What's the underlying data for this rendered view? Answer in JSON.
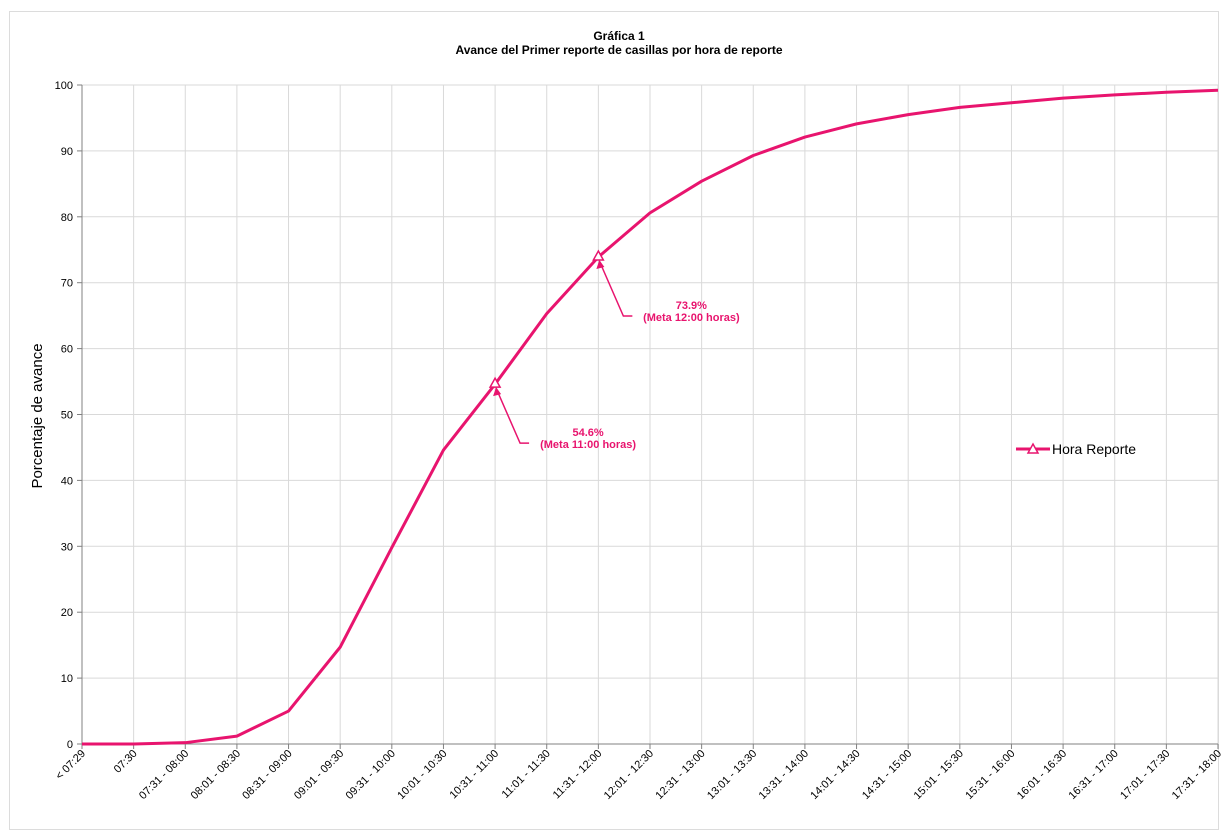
{
  "chart_data": {
    "type": "line",
    "title": "Gráfica 1",
    "subtitle": "Avance del Primer reporte de casillas por hora de reporte",
    "xlabel": "",
    "ylabel": "Porcentaje de avance",
    "ylim": [
      0,
      100
    ],
    "yticks": [
      0,
      10,
      20,
      30,
      40,
      50,
      60,
      70,
      80,
      90,
      100
    ],
    "grid": true,
    "legend_position": "right",
    "categories": [
      "< 07:29",
      "07:30",
      "07:31 - 08:00",
      "08:01 - 08:30",
      "08:31 - 09:00",
      "09:01 - 09:30",
      "09:31 - 10:00",
      "10:01 - 10:30",
      "10:31 - 11:00",
      "11:01 - 11:30",
      "11:31 - 12:00",
      "12:01 - 12:30",
      "12:31 - 13:00",
      "13:01 - 13:30",
      "13:31 - 14:00",
      "14:01 - 14:30",
      "14:31 - 15:00",
      "15:01 - 15:30",
      "15:31 - 16:00",
      "16:01 - 16:30",
      "16:31 - 17:00",
      "17:01 - 17:30",
      "17:31 - 18:00"
    ],
    "series": [
      {
        "name": "Hora Reporte",
        "color": "#e8146e",
        "values": [
          0,
          0,
          0.2,
          1.2,
          5.0,
          14.7,
          29.8,
          44.6,
          54.6,
          65.3,
          73.9,
          80.6,
          85.4,
          89.3,
          92.1,
          94.1,
          95.5,
          96.6,
          97.3,
          98.0,
          98.5,
          98.9,
          99.2
        ]
      }
    ],
    "annotations": [
      {
        "category_index": 8,
        "value": 54.6,
        "label_line1": "54.6%",
        "label_line2": "(Meta 11:00 horas)"
      },
      {
        "category_index": 10,
        "value": 73.9,
        "label_line1": "73.9%",
        "label_line2": "(Meta 12:00 horas)"
      }
    ]
  }
}
